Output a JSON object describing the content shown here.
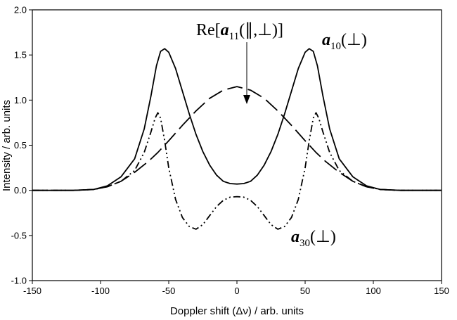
{
  "chart_data": {
    "type": "line",
    "title": "",
    "xlabel": "Doppler shift (Δν) / arb. units",
    "ylabel": "Intensity / arb. units",
    "xlim": [
      -150,
      150
    ],
    "ylim": [
      -1.0,
      2.0
    ],
    "x_ticks": [
      "-150",
      "-100",
      "-50",
      "0",
      "50",
      "100",
      "150"
    ],
    "y_ticks": [
      "-1.0",
      "-0.5",
      "0.0",
      "0.5",
      "1.0",
      "1.5",
      "2.0"
    ],
    "grid": false,
    "legend": "none",
    "series": [
      {
        "name": "a10(⊥)",
        "style": "solid",
        "points": [
          [
            -150,
            0
          ],
          [
            -120,
            0
          ],
          [
            -105,
            0.01
          ],
          [
            -95,
            0.05
          ],
          [
            -85,
            0.15
          ],
          [
            -75,
            0.35
          ],
          [
            -68,
            0.68
          ],
          [
            -63,
            1.05
          ],
          [
            -59,
            1.38
          ],
          [
            -56,
            1.54
          ],
          [
            -53,
            1.57
          ],
          [
            -50,
            1.53
          ],
          [
            -45,
            1.35
          ],
          [
            -40,
            1.1
          ],
          [
            -35,
            0.85
          ],
          [
            -30,
            0.62
          ],
          [
            -25,
            0.43
          ],
          [
            -20,
            0.28
          ],
          [
            -15,
            0.17
          ],
          [
            -10,
            0.1
          ],
          [
            -5,
            0.075
          ],
          [
            0,
            0.07
          ],
          [
            5,
            0.075
          ],
          [
            10,
            0.1
          ],
          [
            15,
            0.17
          ],
          [
            20,
            0.28
          ],
          [
            25,
            0.43
          ],
          [
            30,
            0.62
          ],
          [
            35,
            0.85
          ],
          [
            40,
            1.1
          ],
          [
            45,
            1.35
          ],
          [
            50,
            1.53
          ],
          [
            53,
            1.57
          ],
          [
            56,
            1.54
          ],
          [
            59,
            1.38
          ],
          [
            63,
            1.05
          ],
          [
            68,
            0.68
          ],
          [
            75,
            0.35
          ],
          [
            85,
            0.15
          ],
          [
            95,
            0.05
          ],
          [
            105,
            0.01
          ],
          [
            120,
            0
          ],
          [
            150,
            0
          ]
        ]
      },
      {
        "name": "Re[a11(∥,⊥)]",
        "style": "long-dash",
        "points": [
          [
            -150,
            0
          ],
          [
            -120,
            0
          ],
          [
            -105,
            0.01
          ],
          [
            -95,
            0.04
          ],
          [
            -85,
            0.1
          ],
          [
            -75,
            0.2
          ],
          [
            -65,
            0.32
          ],
          [
            -58,
            0.42
          ],
          [
            -50,
            0.55
          ],
          [
            -40,
            0.72
          ],
          [
            -30,
            0.88
          ],
          [
            -20,
            1.02
          ],
          [
            -10,
            1.11
          ],
          [
            0,
            1.15
          ],
          [
            10,
            1.11
          ],
          [
            20,
            1.02
          ],
          [
            30,
            0.88
          ],
          [
            40,
            0.72
          ],
          [
            50,
            0.55
          ],
          [
            58,
            0.42
          ],
          [
            65,
            0.32
          ],
          [
            75,
            0.2
          ],
          [
            85,
            0.1
          ],
          [
            95,
            0.04
          ],
          [
            105,
            0.01
          ],
          [
            120,
            0
          ],
          [
            150,
            0
          ]
        ]
      },
      {
        "name": "a30(⊥)",
        "style": "dash-dot-dot",
        "points": [
          [
            -150,
            0
          ],
          [
            -120,
            0
          ],
          [
            -105,
            0.01
          ],
          [
            -95,
            0.04
          ],
          [
            -85,
            0.1
          ],
          [
            -75,
            0.22
          ],
          [
            -68,
            0.42
          ],
          [
            -63,
            0.65
          ],
          [
            -60,
            0.8
          ],
          [
            -58,
            0.86
          ],
          [
            -56,
            0.8
          ],
          [
            -53,
            0.55
          ],
          [
            -50,
            0.25
          ],
          [
            -45,
            -0.1
          ],
          [
            -40,
            -0.3
          ],
          [
            -35,
            -0.4
          ],
          [
            -30,
            -0.43
          ],
          [
            -25,
            -0.38
          ],
          [
            -20,
            -0.28
          ],
          [
            -15,
            -0.18
          ],
          [
            -10,
            -0.11
          ],
          [
            -5,
            -0.075
          ],
          [
            0,
            -0.07
          ],
          [
            5,
            -0.075
          ],
          [
            10,
            -0.11
          ],
          [
            15,
            -0.18
          ],
          [
            20,
            -0.28
          ],
          [
            25,
            -0.38
          ],
          [
            30,
            -0.43
          ],
          [
            35,
            -0.4
          ],
          [
            40,
            -0.3
          ],
          [
            45,
            -0.1
          ],
          [
            50,
            0.25
          ],
          [
            53,
            0.55
          ],
          [
            56,
            0.8
          ],
          [
            58,
            0.86
          ],
          [
            60,
            0.8
          ],
          [
            63,
            0.65
          ],
          [
            68,
            0.42
          ],
          [
            75,
            0.22
          ],
          [
            85,
            0.1
          ],
          [
            95,
            0.04
          ],
          [
            105,
            0.01
          ],
          [
            120,
            0
          ],
          [
            150,
            0
          ]
        ]
      }
    ],
    "annotations": {
      "re_a11": {
        "prefix": "Re[",
        "symbol": "a",
        "sub": "11",
        "suffix": "(∥,⊥)]"
      },
      "a10": {
        "symbol": "a",
        "sub": "10",
        "suffix": "(⊥)"
      },
      "a30": {
        "symbol": "a",
        "sub": "30",
        "suffix": "(⊥)"
      }
    }
  }
}
